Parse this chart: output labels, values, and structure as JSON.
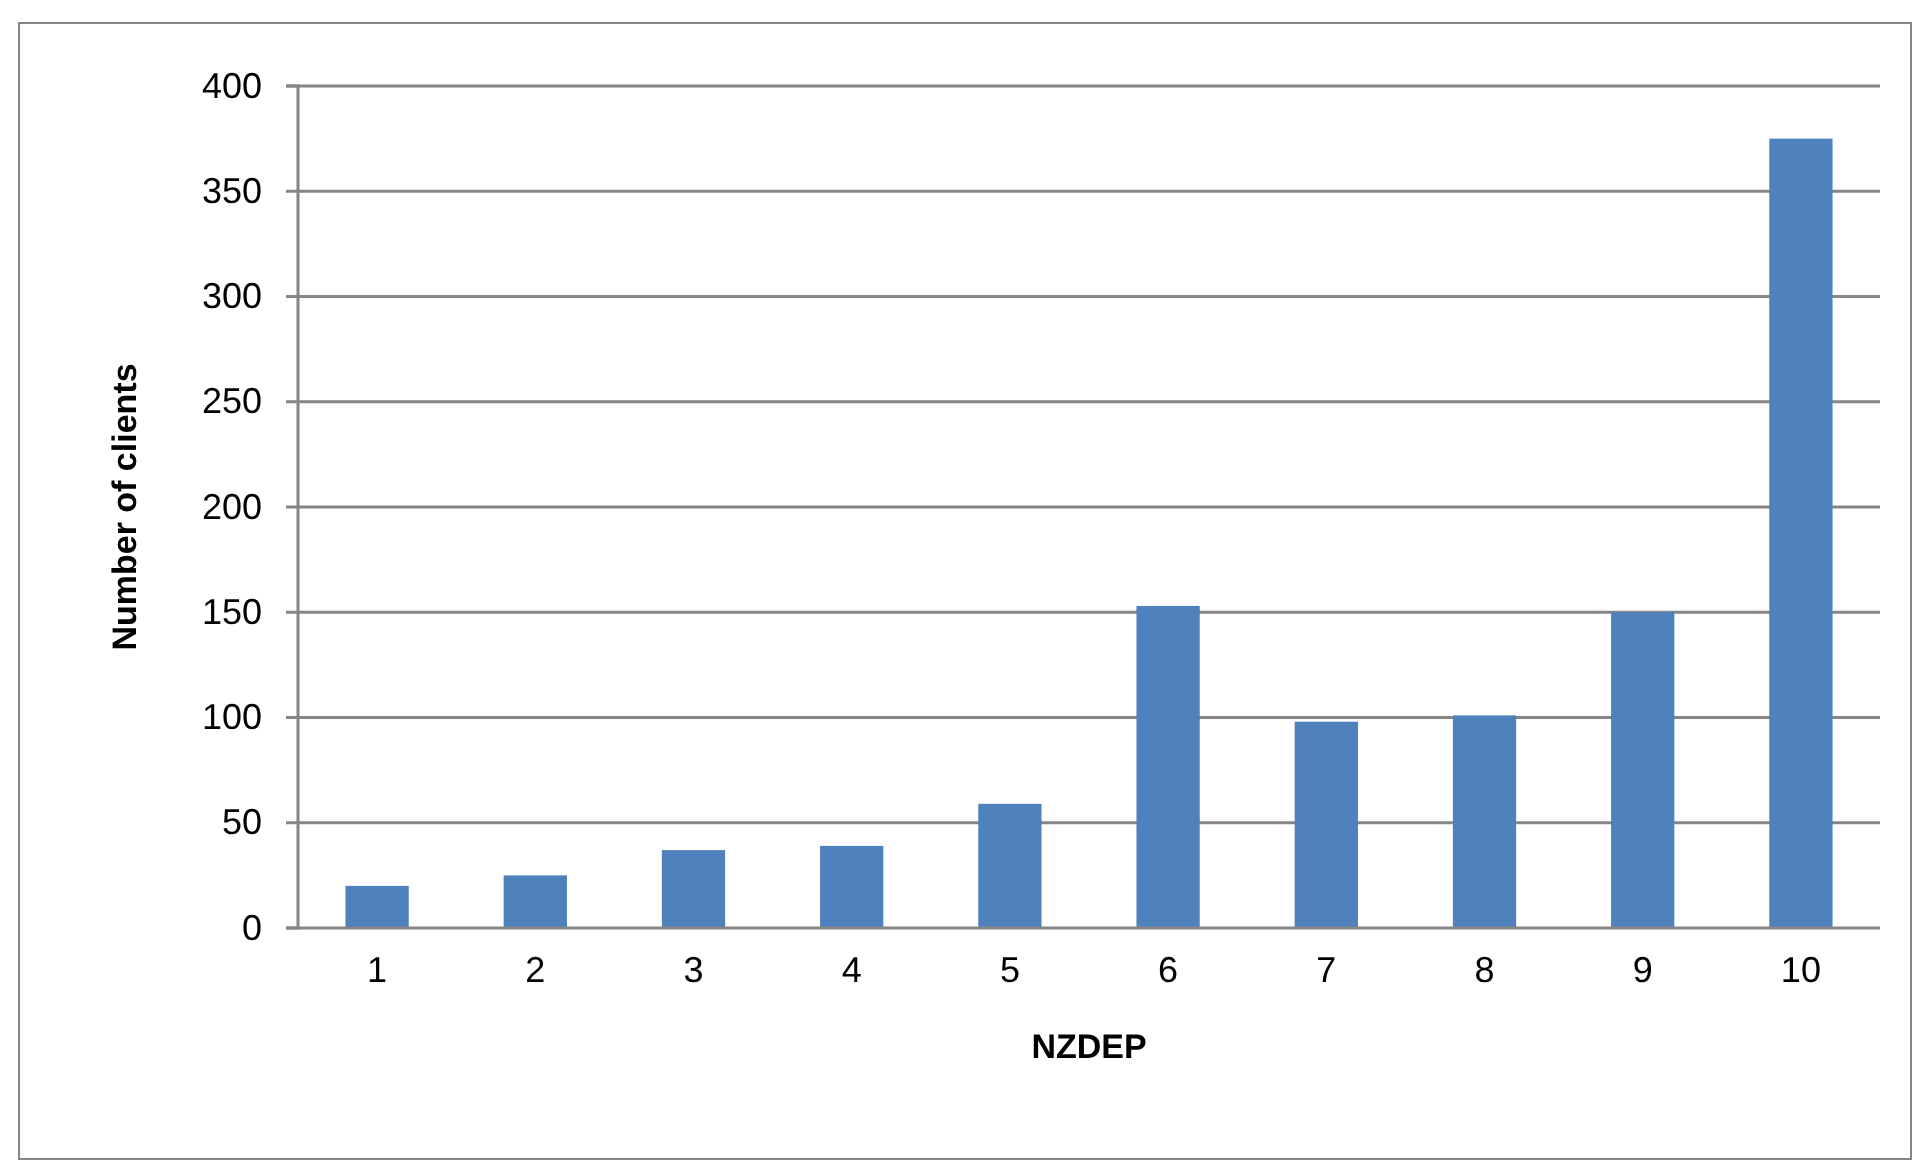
{
  "chart_data": {
    "type": "bar",
    "xlabel": "NZDEP",
    "ylabel": "Number of clients",
    "categories": [
      "1",
      "2",
      "3",
      "4",
      "5",
      "6",
      "7",
      "8",
      "9",
      "10"
    ],
    "values": [
      20,
      25,
      37,
      39,
      59,
      153,
      98,
      101,
      150,
      375
    ],
    "color": "#4f81bd",
    "ylim": [
      0,
      400
    ],
    "yticks": [
      0,
      50,
      100,
      150,
      200,
      250,
      300,
      350,
      400
    ],
    "grid": "y"
  }
}
